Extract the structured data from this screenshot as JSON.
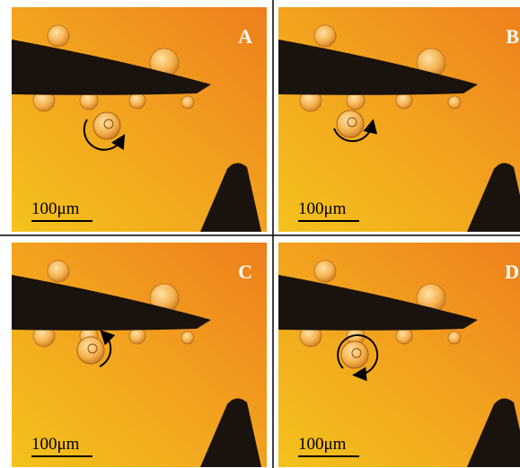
{
  "panels": [
    {
      "label": "A",
      "scale_bar": "100μm"
    },
    {
      "label": "B",
      "scale_bar": "100μm"
    },
    {
      "label": "C",
      "scale_bar": "100μm"
    },
    {
      "label": "D",
      "scale_bar": "100μm"
    }
  ]
}
